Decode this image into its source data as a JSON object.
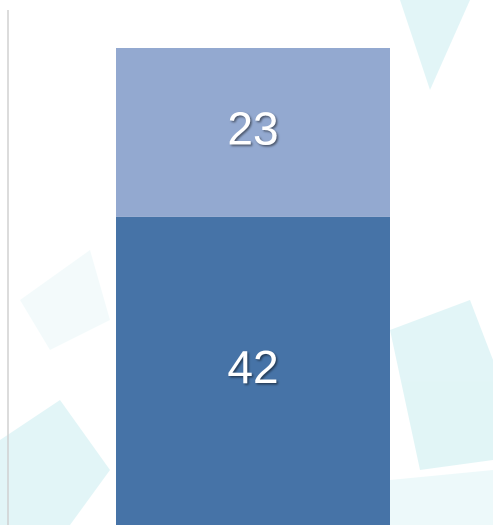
{
  "chart_data": {
    "type": "stacked-bar",
    "categories": [
      null
    ],
    "series": [
      {
        "color": "#4673a7",
        "values": [
          42
        ]
      },
      {
        "color": "#93a9d0",
        "values": [
          23
        ]
      }
    ]
  }
}
